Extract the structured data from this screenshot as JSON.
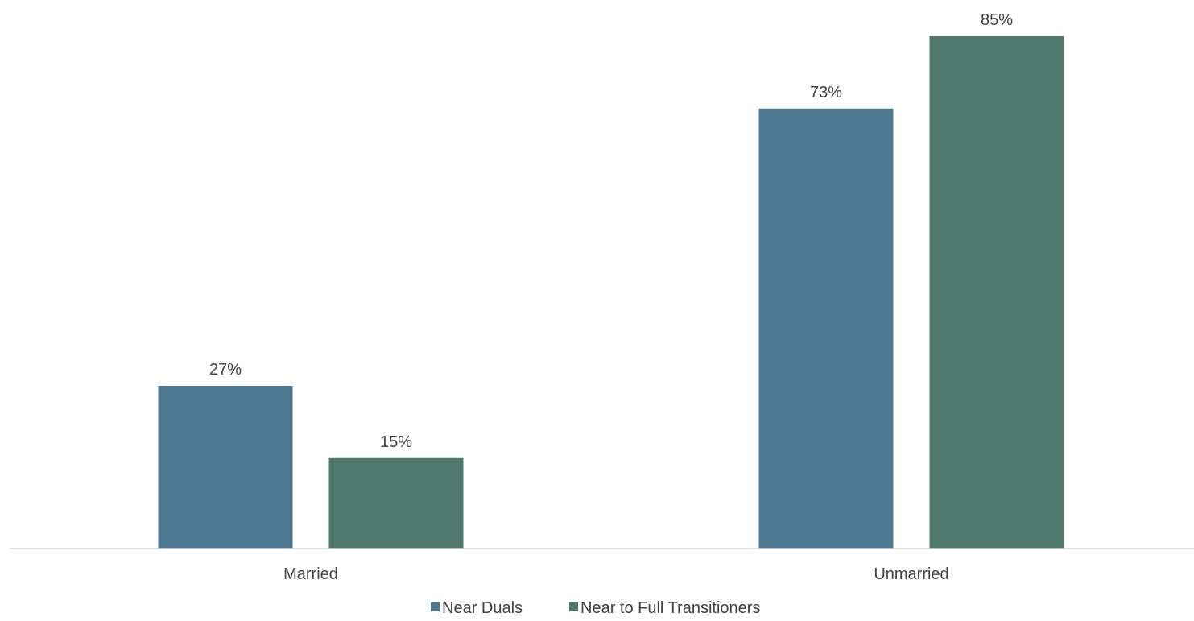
{
  "chart_data": {
    "type": "bar",
    "categories": [
      "Married",
      "Unmarried"
    ],
    "series": [
      {
        "name": "Near Duals",
        "values": [
          27,
          73
        ],
        "labels": [
          "27%",
          "73%"
        ],
        "color": "#4D7891"
      },
      {
        "name": "Near to Full Transitioners",
        "values": [
          15,
          85
        ],
        "labels": [
          "15%",
          "85%"
        ],
        "color": "#4E796C"
      }
    ],
    "ylim": [
      0,
      100
    ],
    "grid": false,
    "legend_position": "bottom",
    "axis_color": "#D9D9D9",
    "text_color": "#404040"
  }
}
